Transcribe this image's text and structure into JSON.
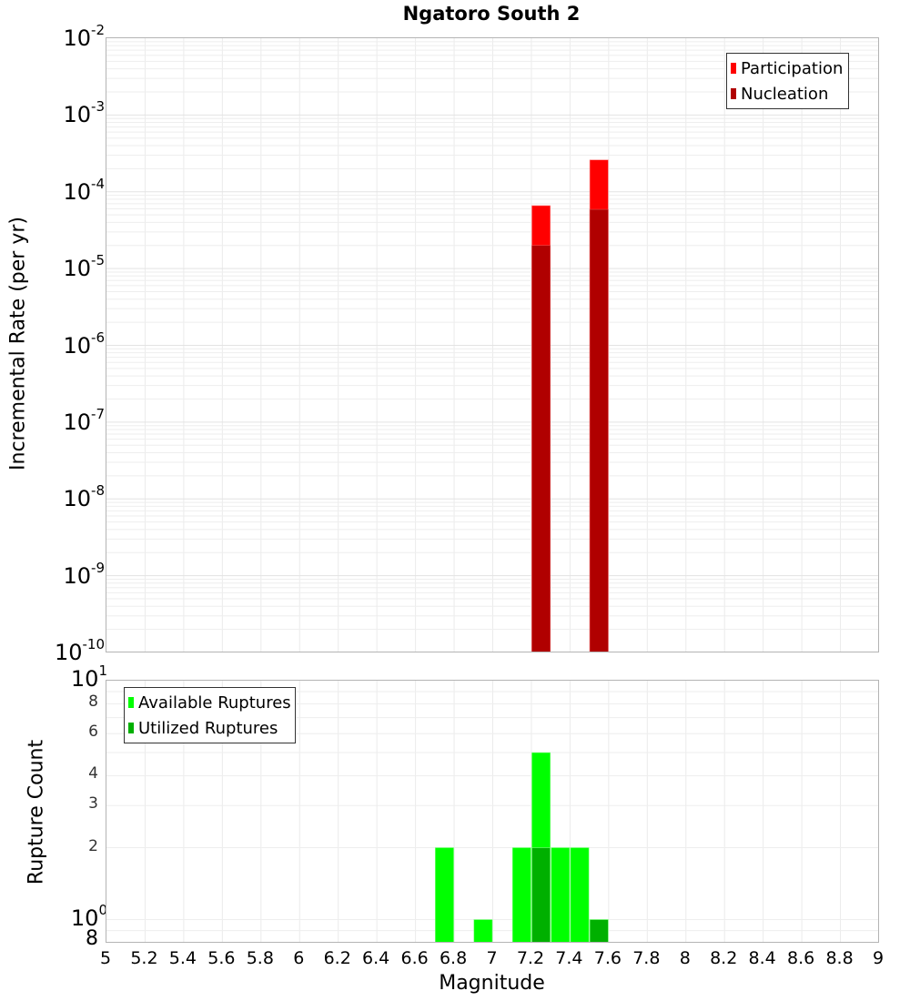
{
  "title": "Ngatoro South 2",
  "top_plot": {
    "ylabel": "Incremental Rate (per yr)",
    "ytick_exponents": [
      "-2",
      "-3",
      "-4",
      "-5",
      "-6",
      "-7",
      "-8",
      "-9",
      "-10"
    ],
    "ytick_base": "10",
    "legend": [
      {
        "label": "Participation",
        "color": "#ff0000"
      },
      {
        "label": "Nucleation",
        "color": "#b00000"
      }
    ]
  },
  "bottom_plot": {
    "ylabel": "Rupture Count",
    "ytick_major": [
      {
        "base": "10",
        "exp": "1",
        "value": 10
      },
      {
        "base": "10",
        "exp": "0",
        "value": 1
      }
    ],
    "ytick_minor": [
      {
        "label": "8",
        "value": 8
      },
      {
        "label": "6",
        "value": 6
      },
      {
        "label": "4",
        "value": 4
      },
      {
        "label": "3",
        "value": 3
      },
      {
        "label": "2",
        "value": 2
      }
    ],
    "ytick_bottom": {
      "label": "8",
      "value": 0.8
    },
    "legend": [
      {
        "label": "Available Ruptures",
        "color": "#00ff00"
      },
      {
        "label": "Utilized Ruptures",
        "color": "#00b000"
      }
    ]
  },
  "xaxis": {
    "label": "Magnitude",
    "ticks": [
      "5",
      "5.2",
      "5.4",
      "5.6",
      "5.8",
      "6",
      "6.2",
      "6.4",
      "6.6",
      "6.8",
      "7",
      "7.2",
      "7.4",
      "7.6",
      "7.8",
      "8",
      "8.2",
      "8.4",
      "8.6",
      "8.8",
      "9"
    ]
  },
  "chart_data": [
    {
      "type": "bar",
      "title": "Ngatoro South 2",
      "xlabel": "Magnitude",
      "ylabel": "Incremental Rate (per yr)",
      "yscale": "log",
      "xlim": [
        5,
        9
      ],
      "ylim": [
        1e-10,
        0.01
      ],
      "grid": true,
      "legend_position": "top-right",
      "bin_width": 0.1,
      "x": [
        7.25,
        7.55
      ],
      "series": [
        {
          "name": "Participation",
          "color": "#ff0000",
          "values": [
            6.6e-05,
            0.00026
          ]
        },
        {
          "name": "Nucleation",
          "color": "#b00000",
          "values": [
            2e-05,
            5.9e-05
          ]
        }
      ]
    },
    {
      "type": "bar",
      "title": "",
      "xlabel": "Magnitude",
      "ylabel": "Rupture Count",
      "yscale": "log",
      "xlim": [
        5,
        9
      ],
      "ylim": [
        0.8,
        10
      ],
      "grid": true,
      "legend_position": "top-left",
      "bin_width": 0.1,
      "x": [
        6.75,
        6.95,
        7.15,
        7.25,
        7.35,
        7.45,
        7.55
      ],
      "series": [
        {
          "name": "Available Ruptures",
          "color": "#00ff00",
          "values": [
            2,
            1,
            2,
            5,
            2,
            2,
            1
          ]
        },
        {
          "name": "Utilized Ruptures",
          "color": "#00b000",
          "values": [
            0,
            0,
            0,
            2,
            0,
            0,
            1
          ]
        }
      ]
    }
  ]
}
